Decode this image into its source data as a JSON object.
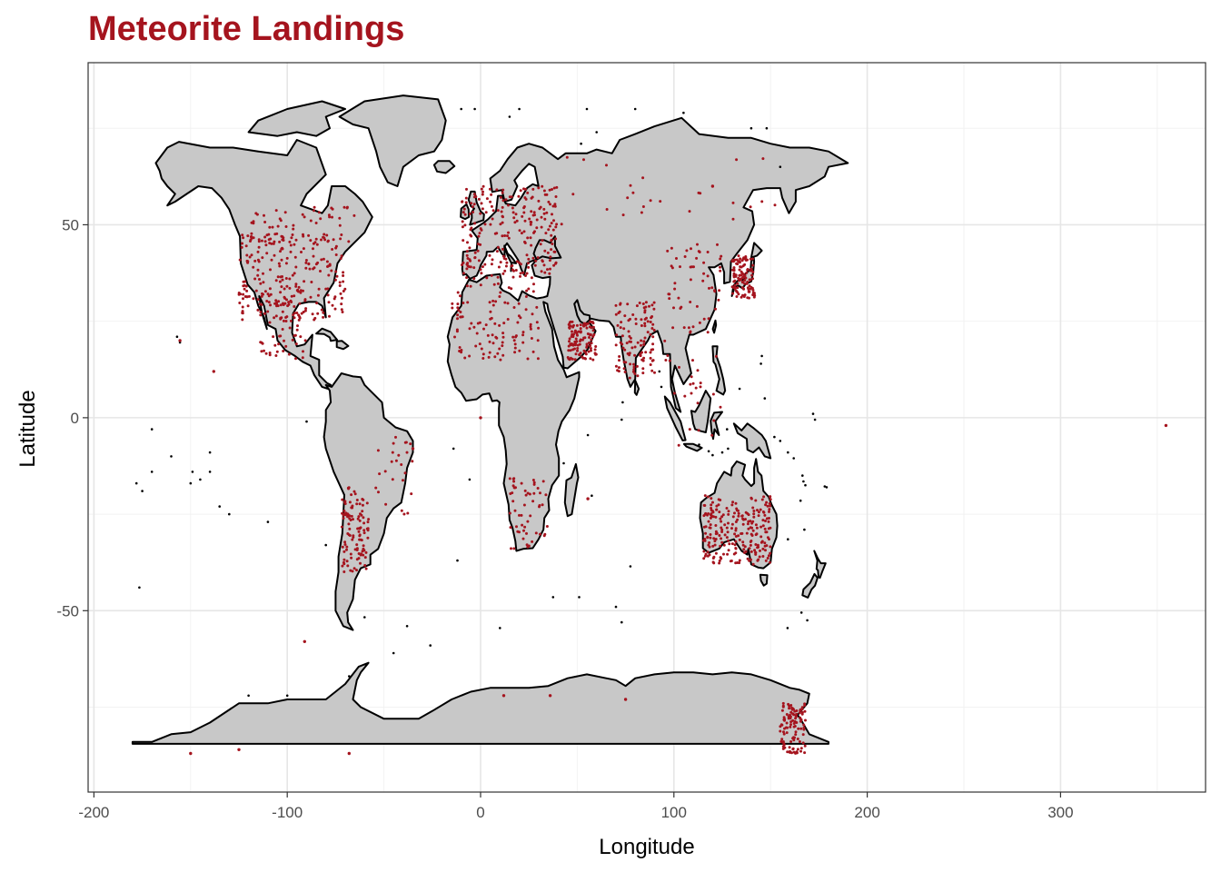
{
  "colors": {
    "title": "#a5141e",
    "point": "#a5141e",
    "land_fill": "#c8c8c8",
    "land_stroke": "#000000",
    "grid_major": "#e6e6e6",
    "grid_minor": "#f2f2f2",
    "panel_border": "#333333",
    "tick_text": "#4d4d4d"
  },
  "chart_data": {
    "type": "scatter",
    "title": "Meteorite Landings",
    "xlabel": "Longitude",
    "ylabel": "Latitude",
    "xlim": [
      -203,
      375
    ],
    "ylim": [
      -97,
      92
    ],
    "x_ticks": [
      -200,
      -100,
      0,
      100,
      200,
      300
    ],
    "x_tick_labels": [
      "-200",
      "-100",
      "0",
      "100",
      "200",
      "300"
    ],
    "y_ticks": [
      -50,
      0,
      50
    ],
    "y_tick_labels": [
      "-50",
      "0",
      "50"
    ],
    "grid": true,
    "legend": "none",
    "basemap": "world country outlines (black outline, grey fill)",
    "point_clusters": [
      {
        "region": "United States",
        "lon_range": [
          -125,
          -70
        ],
        "lat_range": [
          25,
          48
        ],
        "density": "very high"
      },
      {
        "region": "Canada (south)",
        "lon_range": [
          -120,
          -65
        ],
        "lat_range": [
          45,
          55
        ],
        "density": "medium"
      },
      {
        "region": "Mexico",
        "lon_range": [
          -115,
          -90
        ],
        "lat_range": [
          15,
          32
        ],
        "density": "medium"
      },
      {
        "region": "Europe",
        "lon_range": [
          -10,
          40
        ],
        "lat_range": [
          36,
          60
        ],
        "density": "very high"
      },
      {
        "region": "Russia",
        "lon_range": [
          40,
          160
        ],
        "lat_range": [
          50,
          68
        ],
        "density": "low"
      },
      {
        "region": "Sahara / North Africa",
        "lon_range": [
          -15,
          30
        ],
        "lat_range": [
          15,
          35
        ],
        "density": "high"
      },
      {
        "region": "Arabian Peninsula (Oman)",
        "lon_range": [
          45,
          60
        ],
        "lat_range": [
          15,
          25
        ],
        "density": "high"
      },
      {
        "region": "India",
        "lon_range": [
          70,
          90
        ],
        "lat_range": [
          10,
          30
        ],
        "density": "high"
      },
      {
        "region": "China",
        "lon_range": [
          95,
          125
        ],
        "lat_range": [
          22,
          45
        ],
        "density": "medium"
      },
      {
        "region": "Japan",
        "lon_range": [
          130,
          142
        ],
        "lat_range": [
          31,
          42
        ],
        "density": "high"
      },
      {
        "region": "Southeast Asia",
        "lon_range": [
          95,
          125
        ],
        "lat_range": [
          -8,
          20
        ],
        "density": "low"
      },
      {
        "region": "Southern Africa",
        "lon_range": [
          15,
          35
        ],
        "lat_range": [
          -34,
          -15
        ],
        "density": "medium"
      },
      {
        "region": "Chile / Argentina",
        "lon_range": [
          -72,
          -58
        ],
        "lat_range": [
          -40,
          -18
        ],
        "density": "high"
      },
      {
        "region": "Brazil",
        "lon_range": [
          -55,
          -35
        ],
        "lat_range": [
          -25,
          -5
        ],
        "density": "low"
      },
      {
        "region": "Australia (Nullarbor)",
        "lon_range": [
          115,
          150
        ],
        "lat_range": [
          -38,
          -20
        ],
        "density": "very high"
      },
      {
        "region": "Antarctica (Victoria Land)",
        "lon_range": [
          155,
          168
        ],
        "lat_range": [
          -87,
          -74
        ],
        "density": "high"
      }
    ],
    "outlier_points": [
      {
        "x": 354.5,
        "y": -2
      },
      {
        "x": -91,
        "y": -58
      },
      {
        "x": 0,
        "y": 0
      },
      {
        "x": 55.5,
        "y": -21
      },
      {
        "x": -155.5,
        "y": 20
      },
      {
        "x": -138,
        "y": 12
      },
      {
        "x": -35,
        "y": -8
      },
      {
        "x": -68,
        "y": -87
      },
      {
        "x": -150,
        "y": -87
      },
      {
        "x": -125,
        "y": -86
      },
      {
        "x": 75,
        "y": -73
      },
      {
        "x": 12,
        "y": -72
      },
      {
        "x": 36,
        "y": -72
      },
      {
        "x": 120,
        "y": 60
      }
    ]
  }
}
